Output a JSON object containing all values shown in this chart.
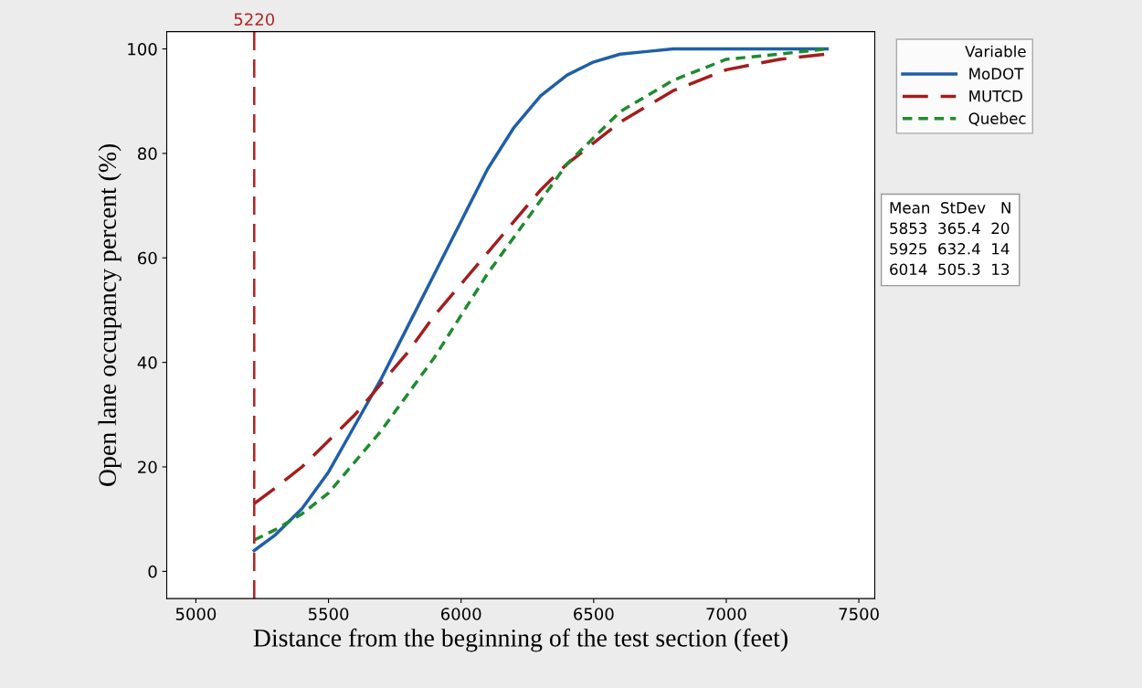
{
  "chart_data": {
    "type": "line",
    "xlabel": "Distance from the beginning of the test section (feet)",
    "ylabel": "Open lane occupancy percent (%)",
    "legend_title": "Variable",
    "x": [
      5220,
      5300,
      5400,
      5500,
      5600,
      5700,
      5800,
      5900,
      6000,
      6100,
      6200,
      6300,
      6400,
      6500,
      6600,
      6700,
      6800,
      7000,
      7200,
      7380
    ],
    "series": [
      {
        "name": "MoDOT",
        "color": "#1f5fa8",
        "line_style": "solid",
        "values": [
          4,
          7,
          12,
          19,
          28,
          37,
          47,
          57,
          67,
          77,
          85,
          91,
          95,
          97.5,
          99,
          99.5,
          100,
          100,
          100,
          100
        ]
      },
      {
        "name": "MUTCD",
        "color": "#a31d1d",
        "line_style": "dashed",
        "values": [
          13,
          16,
          20,
          25,
          30,
          36,
          42,
          49,
          55,
          61,
          67,
          73,
          78,
          82,
          86,
          89,
          92,
          96,
          98,
          99
        ]
      },
      {
        "name": "Quebec",
        "color": "#1e8c2e",
        "line_style": "dotted",
        "values": [
          6,
          8,
          11,
          15,
          21,
          27,
          34,
          41,
          49,
          57,
          64,
          71,
          78,
          83,
          88,
          91,
          94,
          98,
          99,
          100
        ]
      }
    ],
    "xlim": [
      4890,
      7560
    ],
    "xticks": [
      5000,
      5500,
      6000,
      6500,
      7000,
      7500
    ],
    "ylim": [
      -5.2,
      103.3
    ],
    "yticks": [
      0,
      20,
      40,
      60,
      80,
      100
    ],
    "ref_lines": [
      {
        "axis": "x",
        "value": 5220,
        "label": "5220",
        "color": "#b22222",
        "line_style": "dashed"
      }
    ],
    "annotations": [
      "Mean  StDev   N\n5853  365.4  20\n5925  632.4  14\n6014  505.3  13"
    ],
    "grid": false,
    "legend": "right",
    "marker": "none"
  }
}
